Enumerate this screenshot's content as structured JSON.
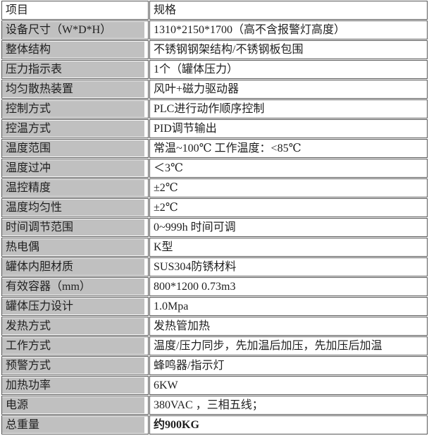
{
  "table": {
    "header": {
      "item": "项目",
      "spec": "规格"
    },
    "rows": [
      {
        "label": "设备尺寸（W*D*H）",
        "value": "1310*2150*1700（高不含报警灯高度）"
      },
      {
        "label": "整体结构",
        "value": "不锈钢钢架结构/不锈钢板包围"
      },
      {
        "label": "压力指示表",
        "value": "1个（罐体压力）"
      },
      {
        "label": "均匀散热装置",
        "value": "风叶+磁力驱动器"
      },
      {
        "label": "控制方式",
        "value": "PLC进行动作顺序控制"
      },
      {
        "label": "控温方式",
        "value": "PID调节输出"
      },
      {
        "label": "温度范围",
        "value": "常温~100℃  工作温度：<85℃"
      },
      {
        "label": "温度过冲",
        "value": "＜3℃"
      },
      {
        "label": "温控精度",
        "value": "±2℃"
      },
      {
        "label": "温度均匀性",
        "value": "±2℃"
      },
      {
        "label": "时间调节范围",
        "value": "0~999h 时间可调"
      },
      {
        "label": "热电偶",
        "value": "K型"
      },
      {
        "label": "罐体内胆材质",
        "value": "SUS304防锈材料"
      },
      {
        "label": "有效容器（mm）",
        "value": "800*1200  0.73m3"
      },
      {
        "label": "罐体压力设计",
        "value": "1.0Mpa"
      },
      {
        "label": "发热方式",
        "value": "发热管加热"
      },
      {
        "label": "工作方式",
        "value": "温度/压力同步，先加温后加压，先加压后加温"
      },
      {
        "label": "预警方式",
        "value": "蜂鸣器/指示灯"
      },
      {
        "label": "加热功率",
        "value": "6KW"
      },
      {
        "label": "电源",
        "value": "380VAC ，三相五线；"
      },
      {
        "label": "总重量",
        "value": "约900KG"
      }
    ]
  },
  "colors": {
    "label_bg": "#c0c0c0",
    "border": "#575757",
    "text": "#1f1f1f"
  }
}
